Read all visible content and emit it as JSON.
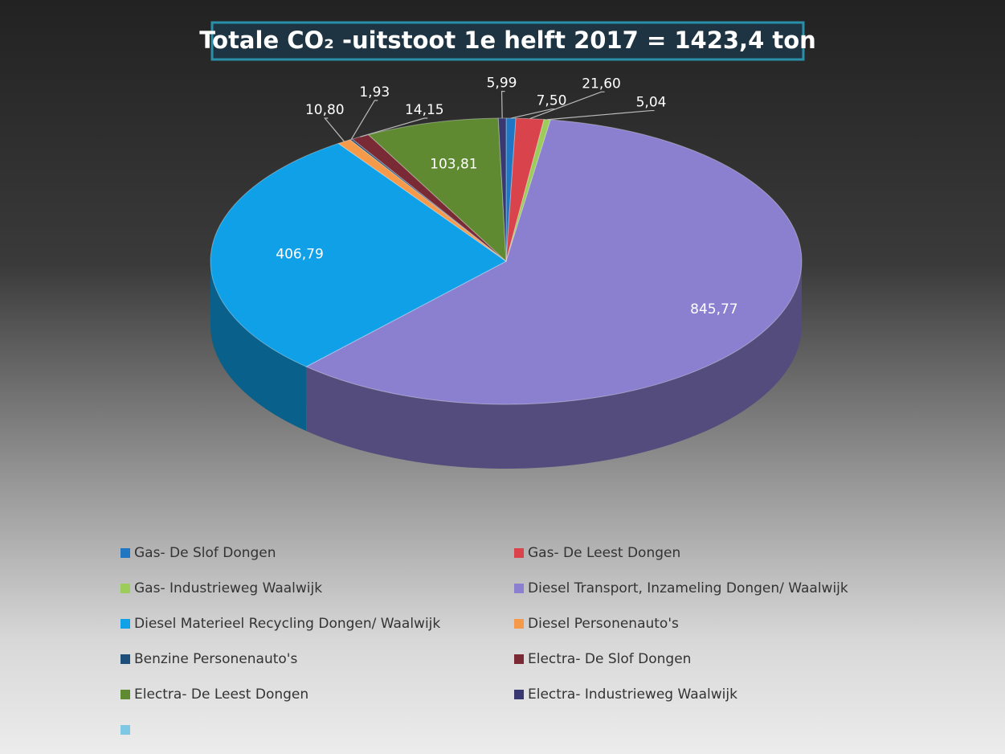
{
  "chart_data": {
    "type": "pie3d",
    "title": "Totale CO₂ -uitstoot 1e helft 2017 = 1423,4 ton",
    "categories": [
      "Gas- De Slof Dongen",
      "Gas- De Leest Dongen",
      "Gas- Industrieweg Waalwijk",
      "Diesel Transport, Inzameling Dongen/ Waalwijk",
      "Diesel Materieel Recycling Dongen/ Waalwijk",
      "Diesel Personenauto's",
      "Benzine Personenauto's",
      "Electra- De Slof Dongen",
      "Electra- De Leest Dongen",
      "Electra- Industrieweg Waalwijk",
      null
    ],
    "values": [
      7.5,
      21.6,
      5.04,
      845.77,
      406.79,
      10.8,
      1.93,
      14.15,
      103.81,
      5.99,
      null
    ],
    "value_labels": [
      "7,50",
      "21,60",
      "5,04",
      "845,77",
      "406,79",
      "10,80",
      "1,93",
      "14,15",
      "103,81",
      "5,99",
      null
    ],
    "colors": [
      "#1f77c4",
      "#d9434b",
      "#9ccc5a",
      "#8b7fd0",
      "#0fa0e8",
      "#f59a4a",
      "#1c4f7a",
      "#7a2a35",
      "#5f8a32",
      "#3a3870",
      "#7ec8e3"
    ],
    "legend": "bottom"
  }
}
